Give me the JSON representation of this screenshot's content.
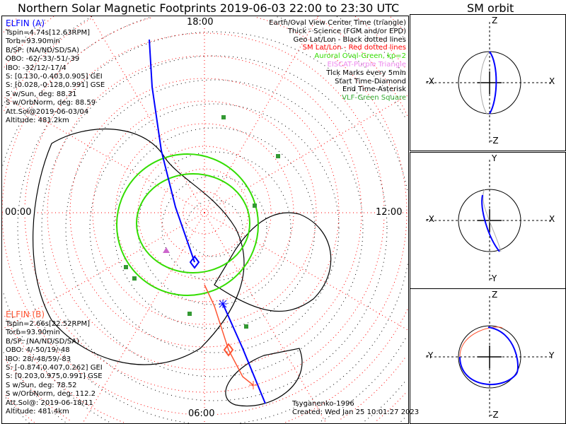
{
  "title": "Northern Solar Magnetic Footprints 2019-06-03 22:00 to 23:30 UTC",
  "sm_title": "SM orbit",
  "hours": {
    "top": "18:00",
    "left": "00:00",
    "right": "12:00",
    "bottom": "06:00"
  },
  "elfin_a": {
    "name": "ELFIN (A)",
    "lines": [
      "Tspin=4.74s[12.63RPM]",
      "Torb=93.90min",
      "B/SP: (NA/ND/SD/SA)",
      "OBO: -62/-33/-51/-39",
      "IBO: -32/12/-17/4",
      "S: [0.130,-0.403,0.905] GEI",
      "S: [0.028,-0.128,0.991] GSE",
      "S w/Sun, deg: 88.31",
      "S w/OrbNorm, deg: 88.59",
      "Att.Sol@2019-06-03/04",
      "Altitude: 481.2km"
    ]
  },
  "elfin_b": {
    "name": "ELFIN (B)",
    "lines": [
      "Tspin=2.66s[22.52RPM]",
      "Torb=93.90min",
      "B/SP: (NA/ND/SD/SA)",
      "OBO: 4/-50/19/-48",
      "IBO: 28/-48/59/-83",
      "S: [-0.874,0.407,0.262] GEI",
      "S: [0.203,0.975,0.991] GSE",
      "S w/Sun, deg: 78.52",
      "S w/OrbNorm, deg: 112.2",
      "Att.Sol@: 2019-06-18/11",
      "Altitude: 481.4km"
    ]
  },
  "legend": [
    {
      "text": "Earth/Oval View Center Time (triangle)",
      "color": "#000000"
    },
    {
      "text": "Thick - Science (FGM and/or EPD)",
      "color": "#000000"
    },
    {
      "text": "Geo Lat/Lon - Black dotted lines",
      "color": "#000000"
    },
    {
      "text": "SM Lat/Lon - Red dotted lines",
      "color": "#ff0000"
    },
    {
      "text": "Auroral Oval-Green, kp=2",
      "color": "#33dd00"
    },
    {
      "text": "EISCAT-Purple Triangle",
      "color": "#ee88ee"
    },
    {
      "text": "Tick Marks every 5min",
      "color": "#000000"
    },
    {
      "text": "Start Time-Diamond",
      "color": "#000000"
    },
    {
      "text": "End Time-Asterisk",
      "color": "#000000"
    },
    {
      "text": "VLF-Green Square",
      "color": "#33aa33"
    }
  ],
  "footer": {
    "model": "Tsyganenko-1996",
    "created": "Created: Wed Jan 25 10:01:27 2023"
  },
  "sm_panels": [
    {
      "top": "Z",
      "bottom": "-Z",
      "left": "-X",
      "right": "X"
    },
    {
      "top": "Y",
      "bottom": "-Y",
      "left": "-X",
      "right": "X"
    },
    {
      "top": "Z",
      "bottom": "-Z",
      "left": "-Y",
      "right": "Y"
    }
  ],
  "colors": {
    "a": "#0000ff",
    "b": "#ff3300",
    "oval": "#33dd00"
  }
}
